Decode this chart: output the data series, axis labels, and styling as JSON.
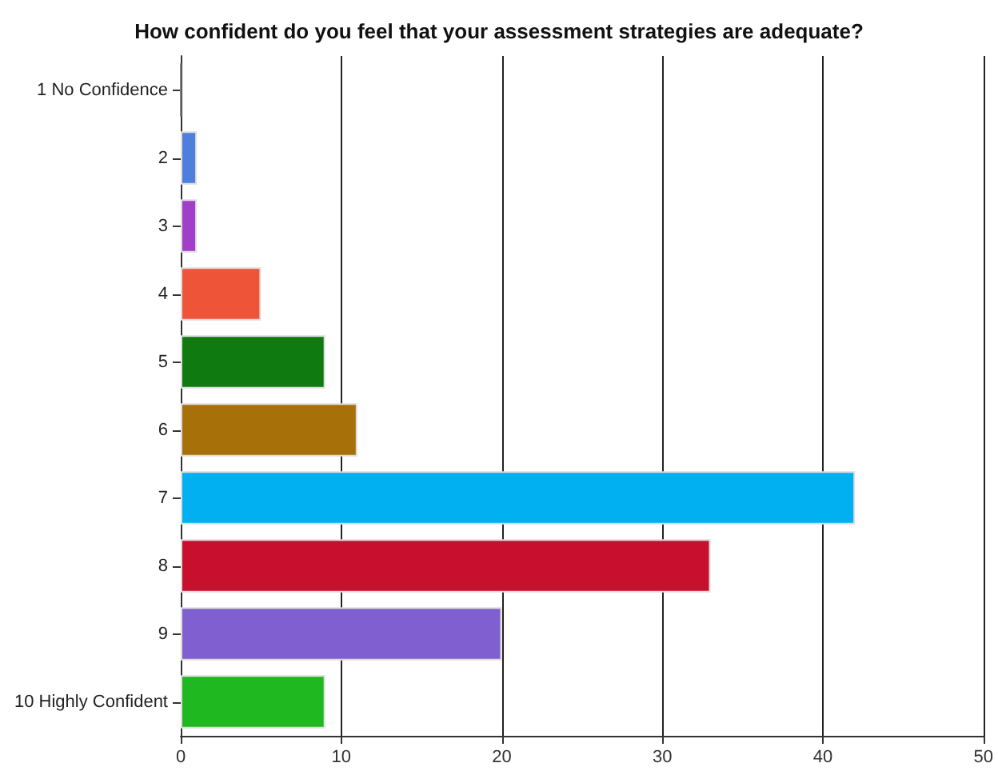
{
  "chart_data": {
    "type": "bar",
    "orientation": "horizontal",
    "title": "How confident do you feel that your assessment strategies are adequate?",
    "categories": [
      "1 No Confidence",
      "2",
      "3",
      "4",
      "5",
      "6",
      "7",
      "8",
      "9",
      "10 Highly Confident"
    ],
    "values": [
      0,
      1,
      1,
      5,
      9,
      11,
      42,
      33,
      20,
      9
    ],
    "colors": [
      "#808080",
      "#4f7fdc",
      "#a040c8",
      "#ee5538",
      "#0e7a10",
      "#a87008",
      "#00b0f0",
      "#c8102e",
      "#8060d0",
      "#20b820"
    ],
    "xlim": [
      0,
      50
    ],
    "xticks": [
      0,
      10,
      20,
      30,
      40,
      50
    ],
    "grid": "x"
  }
}
